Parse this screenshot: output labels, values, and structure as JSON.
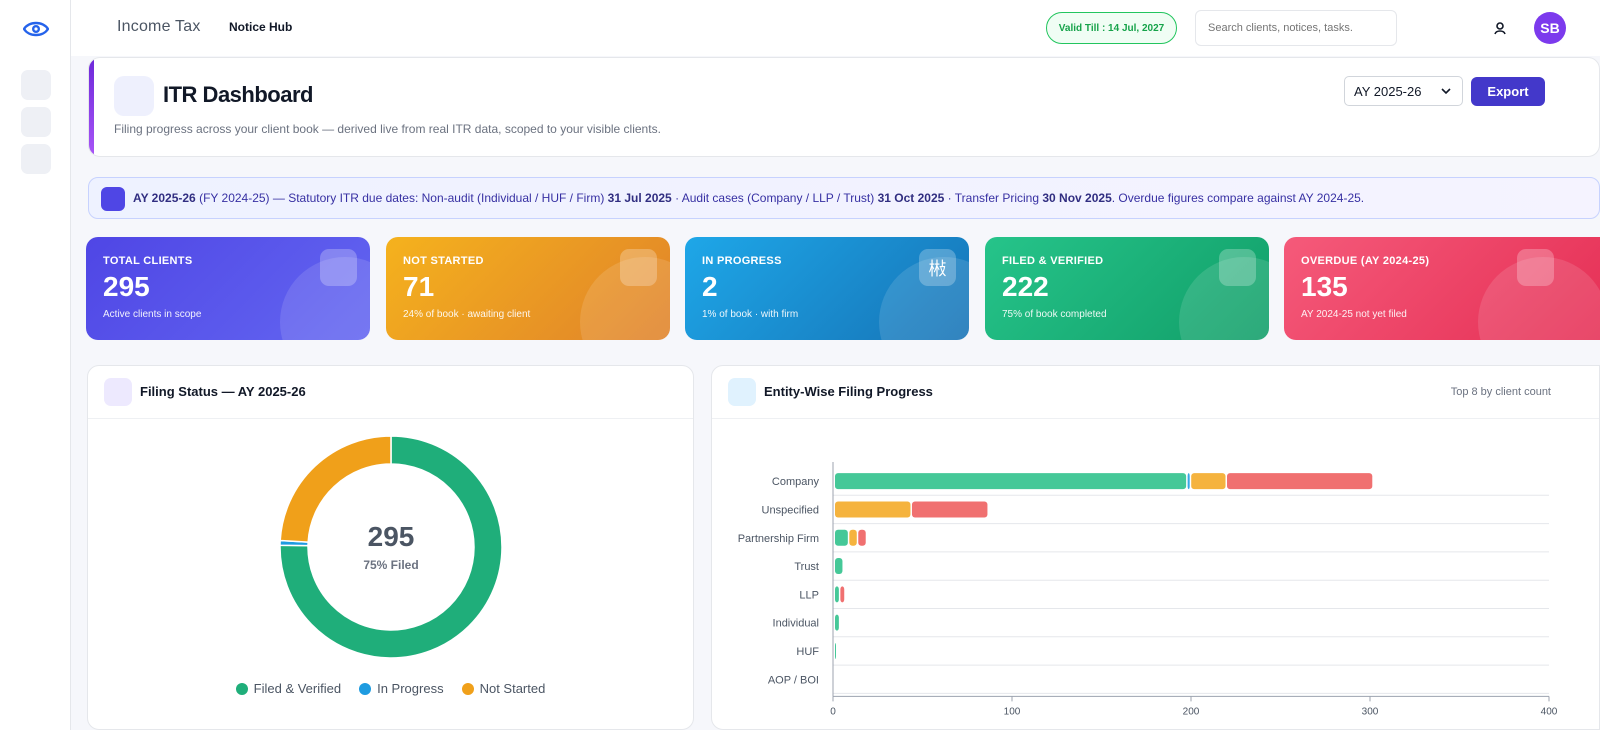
{
  "app": {
    "title": "Income Tax",
    "nav": "Notice Hub"
  },
  "topbar": {
    "valid_till": "Valid Till : 14 Jul, 2027",
    "search_placeholder": "Search clients, notices, tasks.",
    "avatar_initials": "SB"
  },
  "header": {
    "title": "ITR Dashboard",
    "subtitle": "Filing progress across your client book — derived live from real ITR data, scoped to your visible clients.",
    "ay_selected": "AY 2025-26",
    "export_label": "Export"
  },
  "banner": {
    "ay": "AY 2025-26",
    "fy": " (FY 2024-25) — Statutory ITR due dates: Non-audit (Individual / HUF / Firm) ",
    "date1": "31 Jul 2025",
    "mid1": " · Audit cases (Company / LLP / Trust) ",
    "date2": "31 Oct 2025",
    "mid2": " · Transfer Pricing ",
    "date3": "30 Nov 2025",
    "tail": ". Overdue figures compare against AY 2024-25."
  },
  "kpis": [
    {
      "label": "TOTAL CLIENTS",
      "value": "295",
      "sub": "Active clients in scope",
      "color_from": "#4f46e5",
      "color_to": "#6366f1"
    },
    {
      "label": "NOT STARTED",
      "value": "71",
      "sub": "24% of book · awaiting client",
      "color_from": "#f5b21d",
      "color_to": "#e0822a"
    },
    {
      "label": "IN PROGRESS",
      "value": "2",
      "sub": "1% of book · with firm",
      "icon": "㪔",
      "color_from": "#1ea7e8",
      "color_to": "#1673b6"
    },
    {
      "label": "FILED & VERIFIED",
      "value": "222",
      "sub": "75% of book completed",
      "color_from": "#26c48a",
      "color_to": "#119e68"
    },
    {
      "label": "OVERDUE (AY 2024-25)",
      "value": "135",
      "sub": "AY 2024-25 not yet filed",
      "color_from": "#f55a7a",
      "color_to": "#e52f55"
    }
  ],
  "filing_status": {
    "title": "Filing Status — AY 2025-26",
    "center_value": "295",
    "center_sub": "75% Filed",
    "legend": [
      {
        "name": "Filed & Verified",
        "color": "#1fae7a"
      },
      {
        "name": "In Progress",
        "color": "#1e9be0"
      },
      {
        "name": "Not Started",
        "color": "#f0a01a"
      }
    ]
  },
  "entity_progress": {
    "title": "Entity-Wise Filing Progress",
    "note": "Top 8 by client count"
  },
  "chart_data": [
    {
      "type": "pie",
      "title": "Filing Status — AY 2025-26",
      "labels": [
        "Filed & Verified",
        "In Progress",
        "Not Started"
      ],
      "values": [
        222,
        2,
        71
      ],
      "colors": [
        "#1fae7a",
        "#1e9be0",
        "#f0a01a"
      ]
    },
    {
      "type": "bar",
      "orientation": "horizontal",
      "stacked": true,
      "title": "Entity-Wise Filing Progress",
      "categories": [
        "Company",
        "Unspecified",
        "Partnership Firm",
        "Trust",
        "LLP",
        "Individual",
        "HUF",
        "AOP / BOI"
      ],
      "series": [
        {
          "values": [
            197,
            0,
            8,
            5,
            3,
            3,
            1,
            0
          ],
          "color": "#45c898"
        },
        {
          "values": [
            2,
            0,
            0,
            0,
            0,
            0,
            0,
            0
          ],
          "color": "#38a8e6"
        },
        {
          "values": [
            20,
            43,
            5,
            0,
            0,
            0,
            0,
            0
          ],
          "color": "#f5b33e"
        },
        {
          "values": [
            82,
            43,
            5,
            0,
            3,
            0,
            0,
            0
          ],
          "color": "#f07070"
        }
      ],
      "x_ticks": [
        0,
        100,
        200,
        300,
        400
      ],
      "xlim": [
        0,
        400
      ],
      "grid": true
    }
  ]
}
